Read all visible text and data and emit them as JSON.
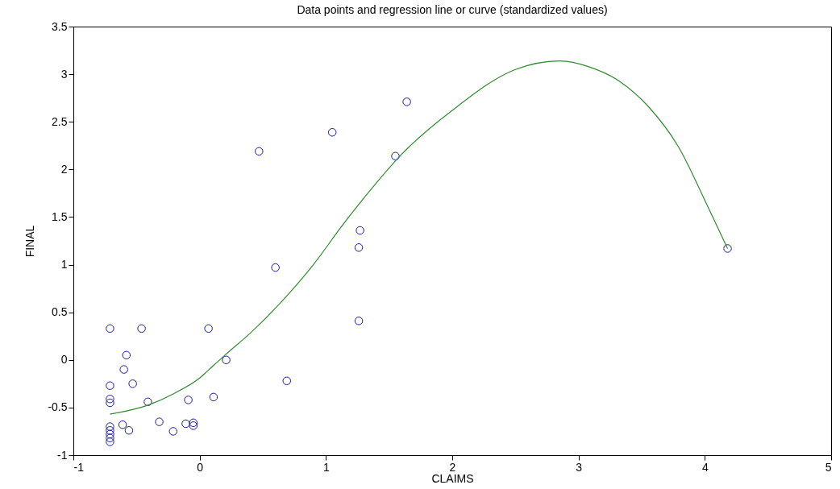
{
  "chart_data": {
    "type": "scatter",
    "title": "Data points and regression line or curve (standardized values)",
    "xlabel": "CLAIMS",
    "ylabel": "FINAL",
    "xlim": [
      -1,
      5
    ],
    "xticks": [
      -1,
      0,
      1,
      2,
      3,
      4,
      5
    ],
    "ylim": [
      -1,
      3.5
    ],
    "yticks": [
      -1,
      -0.5,
      0,
      0.5,
      1,
      1.5,
      2,
      2.5,
      3,
      3.5
    ],
    "grid": false,
    "series": [
      {
        "marker": "circle",
        "color": "#1a1aa6",
        "x": [
          -0.71,
          -0.71,
          -0.71,
          -0.71,
          -0.71,
          -0.71,
          -0.71,
          -0.71,
          -0.71,
          -0.46,
          -0.58,
          -0.6,
          -0.53,
          -0.41,
          -0.61,
          -0.56,
          -0.32,
          -0.21,
          -0.09,
          -0.11,
          -0.05,
          -0.05,
          0.07,
          0.11,
          0.21,
          0.69,
          1.05,
          0.47,
          1.55,
          1.64,
          1.27,
          1.26,
          0.6,
          1.26,
          4.18
        ],
        "values": [
          0.33,
          -0.27,
          -0.41,
          -0.45,
          -0.7,
          -0.74,
          -0.78,
          -0.82,
          -0.86,
          0.33,
          0.05,
          -0.1,
          -0.25,
          -0.44,
          -0.68,
          -0.74,
          -0.65,
          -0.75,
          -0.42,
          -0.67,
          -0.66,
          -0.69,
          0.33,
          -0.39,
          0,
          -0.22,
          2.39,
          2.19,
          2.14,
          2.71,
          1.36,
          1.18,
          0.97,
          0.41,
          1.17
        ]
      },
      {
        "type": "line",
        "color": "#2e8b2e",
        "x": [
          -0.71,
          -0.4,
          -0.2,
          0,
          0.1,
          0.2,
          0.4,
          0.64,
          0.9,
          1.14,
          1.4,
          1.6,
          2,
          2.5,
          2.85,
          3.1,
          3.32,
          3.56,
          3.79,
          4.02,
          4.18
        ],
        "values": [
          -0.57,
          -0.47,
          -0.35,
          -0.19,
          -0.07,
          0.05,
          0.28,
          0.6,
          1.0,
          1.43,
          1.86,
          2.16,
          2.62,
          3.05,
          3.14,
          3.07,
          2.93,
          2.65,
          2.24,
          1.62,
          1.17
        ]
      }
    ]
  }
}
